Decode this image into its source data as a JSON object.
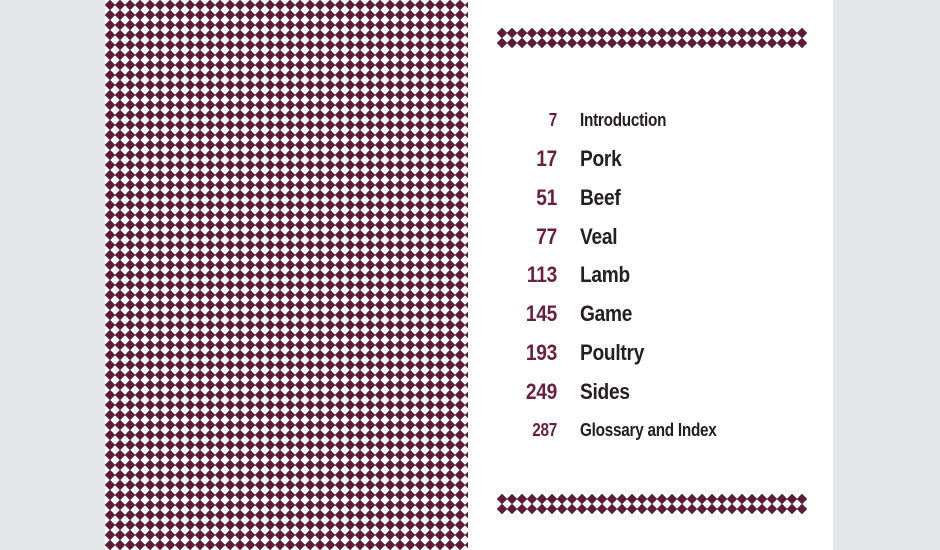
{
  "colors": {
    "background": "#e5e6e8",
    "page_white": "#ffffff",
    "pattern_maroon": "#5e1a37",
    "number_maroon": "#6b1f3e",
    "title_black": "#242021"
  },
  "contents": {
    "entries": [
      {
        "page_number": "7",
        "title": "Introduction",
        "emphasis": "small"
      },
      {
        "page_number": "17",
        "title": "Pork",
        "emphasis": "large"
      },
      {
        "page_number": "51",
        "title": "Beef",
        "emphasis": "large"
      },
      {
        "page_number": "77",
        "title": "Veal",
        "emphasis": "large"
      },
      {
        "page_number": "113",
        "title": "Lamb",
        "emphasis": "large"
      },
      {
        "page_number": "145",
        "title": "Game",
        "emphasis": "large"
      },
      {
        "page_number": "193",
        "title": "Poultry",
        "emphasis": "large"
      },
      {
        "page_number": "249",
        "title": "Sides",
        "emphasis": "large"
      },
      {
        "page_number": "287",
        "title": "Glossary and Index",
        "emphasis": "small"
      }
    ]
  }
}
